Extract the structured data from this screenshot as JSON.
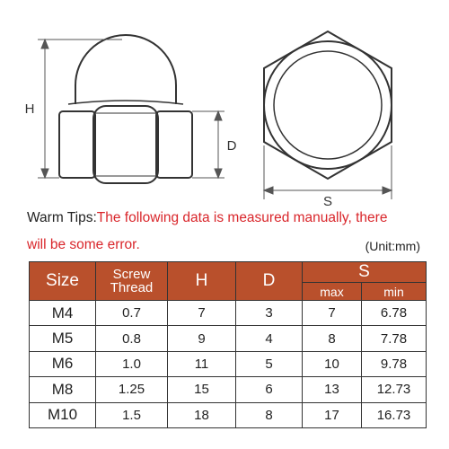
{
  "diagram": {
    "label_h": "H",
    "label_d": "D",
    "label_s": "S"
  },
  "tip": {
    "prefix": "Warm Tips:",
    "message_line1": "The following data is measured manually, there",
    "message_line2": "will be some error.",
    "unit": "(Unit:mm)"
  },
  "table": {
    "headers": {
      "size": "Size",
      "screw_thread": "Screw Thread",
      "h": "H",
      "d": "D",
      "s": "S",
      "s_max": "max",
      "s_min": "min"
    },
    "rows": [
      {
        "size": "M4",
        "thread": "0.7",
        "h": "7",
        "d": "3",
        "max": "7",
        "min": "6.78"
      },
      {
        "size": "M5",
        "thread": "0.8",
        "h": "9",
        "d": "4",
        "max": "8",
        "min": "7.78"
      },
      {
        "size": "M6",
        "thread": "1.0",
        "h": "11",
        "d": "5",
        "max": "10",
        "min": "9.78"
      },
      {
        "size": "M8",
        "thread": "1.25",
        "h": "15",
        "d": "6",
        "max": "13",
        "min": "12.73"
      },
      {
        "size": "M10",
        "thread": "1.5",
        "h": "18",
        "d": "8",
        "max": "17",
        "min": "16.73"
      }
    ]
  },
  "colors": {
    "header_bg": "#b9502c",
    "tip_red": "#d9262b"
  }
}
